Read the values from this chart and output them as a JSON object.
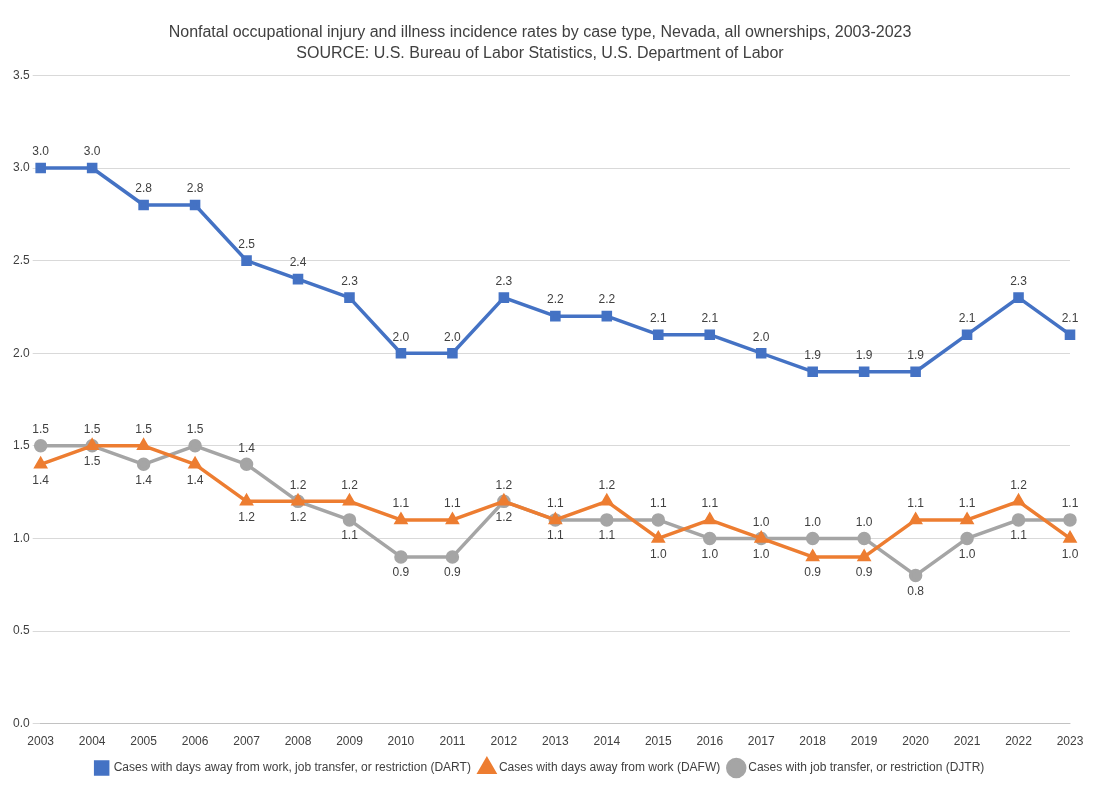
{
  "chart_data": {
    "type": "line",
    "title": "Nonfatal occupational injury and illness incidence rates by case type, Nevada, all ownerships, 2003-2023",
    "annotations": [
      "SOURCE: U.S. Bureau of Labor Statistics, U.S. Department of Labor"
    ],
    "categories": [
      "2003",
      "2004",
      "2005",
      "2006",
      "2007",
      "2008",
      "2009",
      "2010",
      "2011",
      "2012",
      "2013",
      "2014",
      "2015",
      "2016",
      "2017",
      "2018",
      "2019",
      "2020",
      "2021",
      "2022",
      "2023"
    ],
    "ylim": [
      0,
      3.5
    ],
    "yticks": [
      {
        "value": 0,
        "label": "0.0"
      },
      {
        "value": 0.5,
        "label": "0.5"
      },
      {
        "value": 1,
        "label": "1.0"
      },
      {
        "value": 1.5,
        "label": "1.5"
      },
      {
        "value": 2,
        "label": "2.0"
      },
      {
        "value": 2.5,
        "label": "2.5"
      },
      {
        "value": 3,
        "label": "3.0"
      },
      {
        "value": 3.5,
        "label": "3.5"
      }
    ],
    "grid": "y",
    "legend": "bottom",
    "line_style": "solid",
    "series": [
      {
        "name": "Cases with days away from work, job transfer, or restriction (DART)",
        "color": "#4472c4",
        "marker": "square",
        "values": [
          3.0,
          3.0,
          2.8,
          2.8,
          2.5,
          2.4,
          2.3,
          2.0,
          2.0,
          2.3,
          2.2,
          2.2,
          2.1,
          2.1,
          2.0,
          1.9,
          1.9,
          1.9,
          2.1,
          2.3,
          2.1
        ],
        "value_labels": [
          "3.0",
          "3.0",
          "2.8",
          "2.8",
          "2.5",
          "2.4",
          "2.3",
          "2.0",
          "2.0",
          "2.3",
          "2.2",
          "2.2",
          "2.1",
          "2.1",
          "2.0",
          "1.9",
          "1.9",
          "1.9",
          "2.1",
          "2.3",
          "2.1"
        ]
      },
      {
        "name": "Cases with days away from work (DAFW)",
        "color": "#ed7d31",
        "marker": "triangle",
        "values": [
          1.4,
          1.5,
          1.5,
          1.4,
          1.2,
          1.2,
          1.2,
          1.1,
          1.1,
          1.2,
          1.1,
          1.2,
          1.0,
          1.1,
          1.0,
          0.9,
          0.9,
          1.1,
          1.1,
          1.2,
          1.0
        ],
        "value_labels": [
          "1.4",
          "1.5",
          "1.5",
          "1.4",
          "1.2",
          "1.2",
          "1.2",
          "1.1",
          "1.1",
          "1.2",
          "1.1",
          "1.2",
          "1.0",
          "1.1",
          "1.0",
          "0.9",
          "0.9",
          "1.1",
          "1.1",
          "1.2",
          "1.0"
        ]
      },
      {
        "name": "Cases with job transfer, or restriction (DJTR)",
        "color": "#a5a5a5",
        "marker": "circle",
        "values": [
          1.5,
          1.5,
          1.4,
          1.5,
          1.4,
          1.2,
          1.1,
          0.9,
          0.9,
          1.2,
          1.1,
          1.1,
          1.1,
          1.0,
          1.0,
          1.0,
          1.0,
          0.8,
          1.0,
          1.1,
          1.1
        ],
        "value_labels": [
          "1.5",
          "1.5",
          "1.4",
          "1.5",
          "1.4",
          "1.2",
          "1.1",
          "0.9",
          "0.9",
          "1.2",
          "1.1",
          "1.1",
          "1.1",
          "1.0",
          "1.0",
          "1.0",
          "1.0",
          "0.8",
          "1.0",
          "1.1",
          "1.1"
        ]
      }
    ]
  }
}
